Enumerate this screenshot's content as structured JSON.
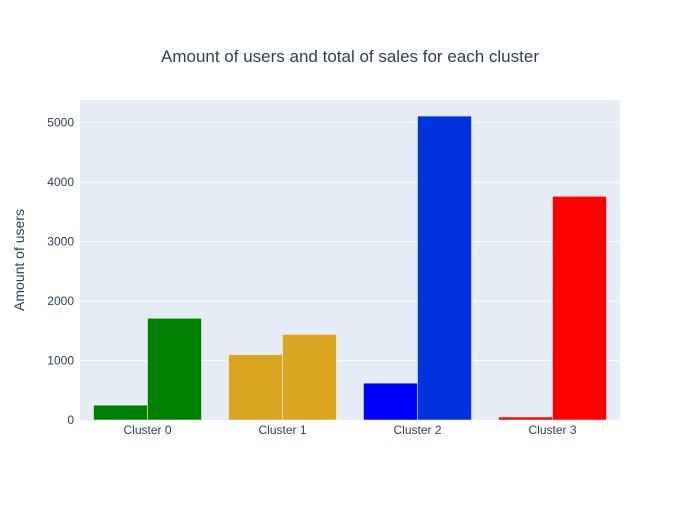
{
  "chart_data": {
    "type": "bar",
    "title": "Amount of users and total of sales for each cluster",
    "xlabel": "",
    "ylabel": "Amount of users",
    "categories": [
      "Cluster 0",
      "Cluster 1",
      "Cluster 2",
      "Cluster 3"
    ],
    "series": [
      {
        "values": [
          250,
          1100,
          620,
          50
        ],
        "colors": [
          "#008000",
          "#daa520",
          "#0000ff",
          "#ff0000"
        ]
      },
      {
        "values": [
          1710,
          1440,
          5110,
          3760
        ],
        "colors": [
          "#008000",
          "#daa520",
          "#0033dd",
          "#ff0000"
        ]
      }
    ],
    "ylim": [
      0,
      5380
    ],
    "yticks": [
      0,
      1000,
      2000,
      3000,
      4000,
      5000
    ],
    "ytick_labels": [
      "0",
      "1000",
      "2000",
      "3000",
      "4000",
      "5000"
    ],
    "grid": true,
    "legend": "none",
    "plot_background": "#e5ecf6",
    "text_color": "#2a3f5f"
  }
}
